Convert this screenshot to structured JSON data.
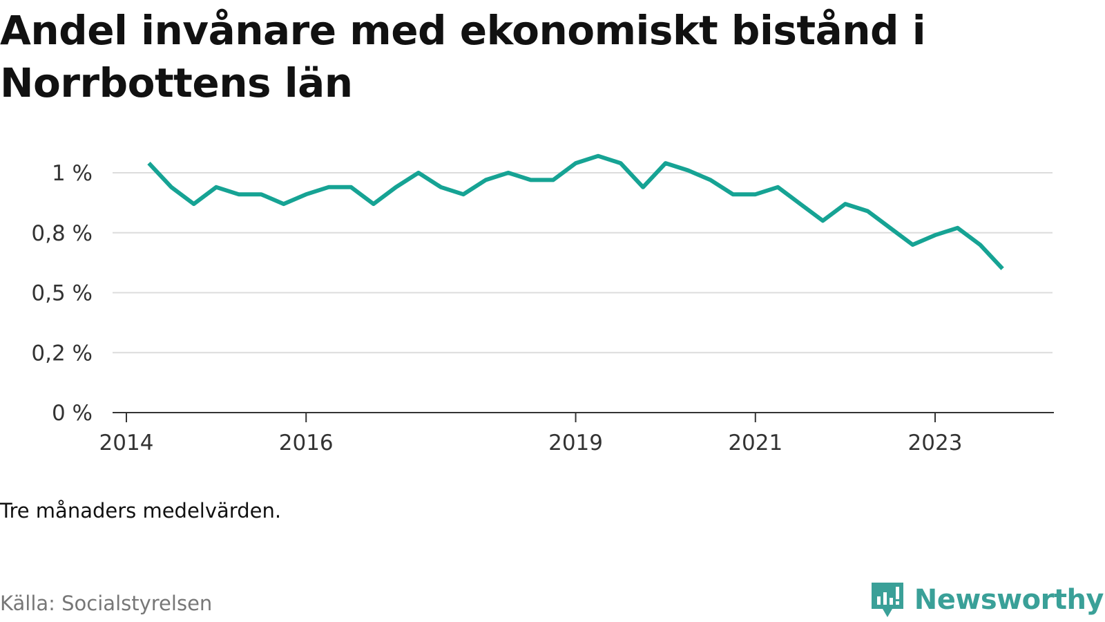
{
  "title": "Andel invånare med ekonomiskt bistånd i Norrbottens län",
  "note": "Tre månaders medelvärden.",
  "source": "Källa: Socialstyrelsen",
  "brand": {
    "name": "Newsworthy",
    "logo_icon": "bar-chart-exclamation-icon",
    "color": "#3aa098"
  },
  "chart_data": {
    "type": "line",
    "title": "Andel invånare med ekonomiskt bistånd i Norrbottens län",
    "xlabel": "",
    "ylabel": "",
    "x_ticks": [
      "2014",
      "2016",
      "2019",
      "2021",
      "2023"
    ],
    "y_ticks": [
      "1 %",
      "0,8 %",
      "0,5 %",
      "0,2 %",
      "0 %"
    ],
    "y_tick_values": [
      1.0,
      0.75,
      0.5,
      0.25,
      0.0
    ],
    "ylim": [
      0,
      1.1
    ],
    "grid": true,
    "line_color": "#16a394",
    "series": [
      {
        "x": [
          "2014-04",
          "2014-07",
          "2014-10",
          "2015-01",
          "2015-04",
          "2015-07",
          "2015-10",
          "2016-01",
          "2016-04",
          "2016-07",
          "2016-10",
          "2017-01",
          "2017-04",
          "2017-07",
          "2017-10",
          "2018-01",
          "2018-04",
          "2018-07",
          "2018-10",
          "2019-01",
          "2019-04",
          "2019-07",
          "2019-10",
          "2020-01",
          "2020-04",
          "2020-07",
          "2020-10",
          "2021-01",
          "2021-04",
          "2021-07",
          "2021-10",
          "2022-01",
          "2022-04",
          "2022-07",
          "2022-10",
          "2023-01",
          "2023-04",
          "2023-07",
          "2023-10"
        ],
        "values": [
          1.04,
          0.94,
          0.87,
          0.94,
          0.91,
          0.91,
          0.87,
          0.91,
          0.94,
          0.94,
          0.87,
          0.94,
          1.0,
          0.94,
          0.91,
          0.97,
          1.0,
          0.97,
          0.97,
          1.04,
          1.07,
          1.04,
          0.94,
          1.04,
          1.01,
          0.97,
          0.91,
          0.91,
          0.94,
          0.87,
          0.8,
          0.87,
          0.84,
          0.77,
          0.7,
          0.74,
          0.77,
          0.7,
          0.6
        ]
      }
    ]
  }
}
